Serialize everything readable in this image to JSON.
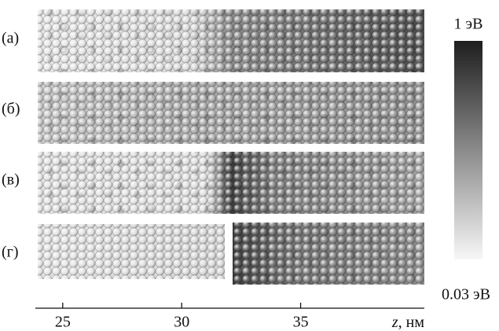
{
  "figure": {
    "panels": [
      "(а)",
      "(б)",
      "(в)",
      "(г)"
    ],
    "colorbar": {
      "max_label": "1 эВ",
      "min_label": "0.03 эВ"
    },
    "axis": {
      "label_var": "z",
      "label_unit": ", нм",
      "xlim": [
        23.85,
        40.2
      ],
      "xticks": [
        25,
        30,
        35
      ]
    }
  }
}
